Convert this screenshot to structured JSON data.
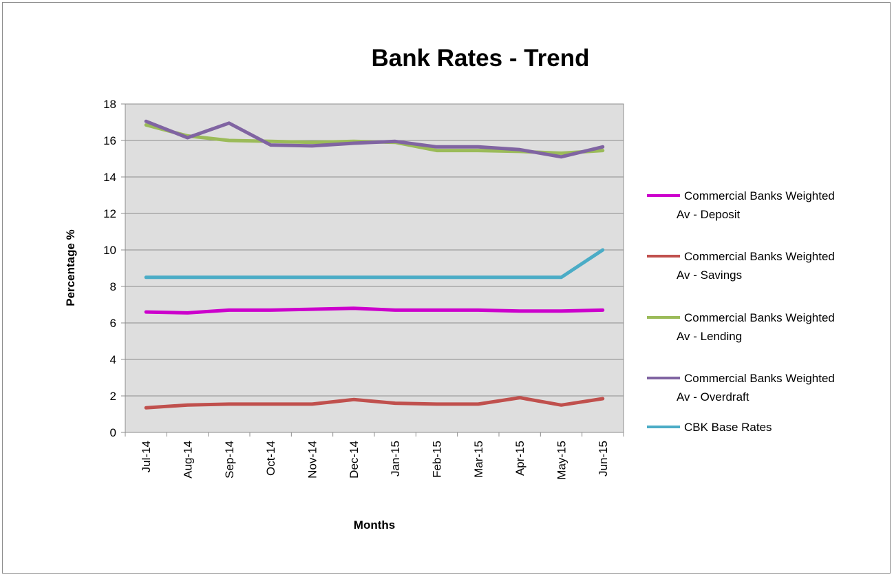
{
  "chart_data": {
    "type": "line",
    "title": "Bank Rates - Trend",
    "xlabel": "Months",
    "ylabel": "Percentage %",
    "ylim": [
      0,
      18
    ],
    "yticks": [
      "0",
      "2",
      "4",
      "6",
      "8",
      "10",
      "12",
      "14",
      "16",
      "18"
    ],
    "categories": [
      "Jul-14",
      "Aug-14",
      "Sep-14",
      "Oct-14",
      "Nov-14",
      "Dec-14",
      "Jan-15",
      "Feb-15",
      "Mar-15",
      "Apr-15",
      "May-15",
      "Jun-15"
    ],
    "grid": true,
    "legend_position": "right",
    "series": [
      {
        "name": "Commercial Banks Weighted Av - Deposit",
        "legend_lines": [
          "Commercial Banks Weighted",
          "Av - Deposit"
        ],
        "color": "#cc00cc",
        "values": [
          6.6,
          6.55,
          6.7,
          6.7,
          6.75,
          6.8,
          6.7,
          6.7,
          6.7,
          6.65,
          6.65,
          6.7
        ]
      },
      {
        "name": "Commercial Banks Weighted Av - Savings",
        "legend_lines": [
          "Commercial Banks Weighted",
          "Av - Savings"
        ],
        "color": "#c0504d",
        "values": [
          1.35,
          1.5,
          1.55,
          1.55,
          1.55,
          1.8,
          1.6,
          1.55,
          1.55,
          1.9,
          1.5,
          1.85
        ]
      },
      {
        "name": "Commercial Banks Weighted Av - Lending",
        "legend_lines": [
          "Commercial Banks Weighted",
          "Av - Lending"
        ],
        "color": "#9bbb59",
        "values": [
          16.85,
          16.25,
          16.0,
          15.95,
          15.9,
          15.95,
          15.9,
          15.45,
          15.45,
          15.4,
          15.3,
          15.45
        ]
      },
      {
        "name": "Commercial Banks Weighted Av - Overdraft",
        "legend_lines": [
          "Commercial Banks Weighted",
          "Av - Overdraft"
        ],
        "color": "#8064a2",
        "values": [
          17.05,
          16.15,
          16.95,
          15.75,
          15.7,
          15.85,
          15.95,
          15.65,
          15.65,
          15.5,
          15.1,
          15.65
        ]
      },
      {
        "name": "CBK Base Rates",
        "legend_lines": [
          "CBK Base Rates"
        ],
        "color": "#4bacc6",
        "values": [
          8.5,
          8.5,
          8.5,
          8.5,
          8.5,
          8.5,
          8.5,
          8.5,
          8.5,
          8.5,
          8.5,
          10.0
        ]
      }
    ]
  }
}
